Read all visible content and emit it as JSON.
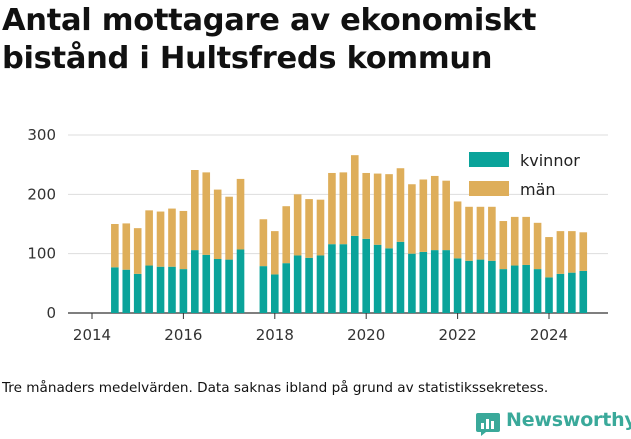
{
  "title": "Antal mottagare av ekonomiskt bistånd i Hultsfreds kommun",
  "caption": "Tre månaders medelvärden. Data saknas ibland på grund av statistikssekretess.",
  "logo": {
    "text": "Newsworthy",
    "icon": "newsworthy-logo-icon"
  },
  "colors": {
    "kvinnor": "#0aa39a",
    "man": "#deae5a",
    "grid": "#dddddd",
    "axis": "#333333"
  },
  "chart_data": {
    "type": "bar",
    "stacked": true,
    "x_axis": {
      "ticks": [
        "2014",
        "2016",
        "2018",
        "2020",
        "2022",
        "2024"
      ]
    },
    "y_axis": {
      "ticks": [
        "0",
        "100",
        "200",
        "300"
      ],
      "ylim": [
        0,
        300
      ]
    },
    "grid": true,
    "legend_position": "top-right",
    "x": [
      "2014-07",
      "2014-10",
      "2015-01",
      "2015-04",
      "2015-07",
      "2015-10",
      "2016-01",
      "2016-04",
      "2016-07",
      "2016-10",
      "2017-01",
      "2017-04",
      null,
      "2017-10",
      "2018-01",
      "2018-04",
      "2018-07",
      "2018-10",
      "2019-01",
      "2019-04",
      "2019-07",
      "2019-10",
      "2020-01",
      "2020-04",
      "2020-07",
      "2020-10",
      "2021-01",
      "2021-04",
      "2021-07",
      "2021-10",
      "2022-01",
      "2022-04",
      "2022-07",
      "2022-10",
      "2023-01",
      "2023-04",
      "2023-07",
      "2023-10",
      "2024-01",
      "2024-04",
      "2024-07",
      "2024-10",
      "2025-01"
    ],
    "series": [
      {
        "name": "kvinnor",
        "values": [
          77,
          73,
          66,
          80,
          78,
          78,
          74,
          106,
          98,
          91,
          90,
          107,
          null,
          79,
          65,
          84,
          97,
          93,
          97,
          116,
          116,
          130,
          125,
          115,
          109,
          120,
          100,
          103,
          106,
          106,
          92,
          88,
          90,
          88,
          74,
          80,
          81,
          74,
          60,
          66,
          68,
          71,
          null
        ]
      },
      {
        "name": "män",
        "values": [
          73,
          78,
          77,
          93,
          93,
          98,
          98,
          135,
          139,
          117,
          106,
          119,
          null,
          79,
          73,
          96,
          103,
          99,
          94,
          120,
          121,
          136,
          111,
          120,
          125,
          124,
          117,
          122,
          125,
          117,
          96,
          91,
          89,
          91,
          81,
          82,
          81,
          78,
          68,
          72,
          70,
          65,
          null
        ]
      }
    ]
  }
}
